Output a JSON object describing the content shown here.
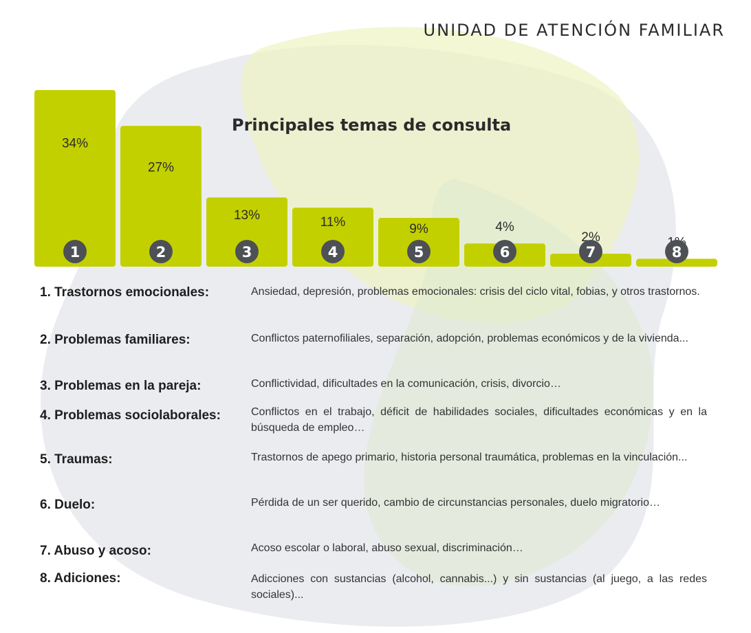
{
  "header": {
    "title": "UNIDAD DE ATENCIÓN FAMILIAR"
  },
  "colors": {
    "bar": "#c3d000",
    "badge": "#4d5055",
    "blob_gray": "#e4e6eb",
    "blob_yellow": "#eef4c2",
    "blob_green": "#dfe9cf"
  },
  "chart_data": {
    "type": "bar",
    "title": "Principales temas de consulta",
    "categories": [
      "1",
      "2",
      "3",
      "4",
      "5",
      "6",
      "7",
      "8"
    ],
    "values": [
      34,
      27,
      13,
      11,
      9,
      4,
      2,
      1
    ],
    "labels": [
      "34%",
      "27%",
      "13%",
      "11%",
      "9%",
      "4%",
      "2%",
      "1%"
    ],
    "ylim": [
      0,
      34
    ],
    "grid": false
  },
  "legend": [
    {
      "term": "1. Trastornos emocionales:",
      "desc": "Ansiedad, depresión, problemas emocionales: crisis del ciclo vital, fobias, y otros  trastornos."
    },
    {
      "term": "2. Problemas familiares:",
      "desc": "Conflictos paternofiliales, separación, adopción, problemas económicos y de la vivienda..."
    },
    {
      "term": "3. Problemas en la pareja:",
      "desc": "Conflictividad, dificultades en la comunicación, crisis, divorcio…"
    },
    {
      "term": "4. Problemas sociolaborales:",
      "desc": "Conflictos en el trabajo, déficit de habilidades sociales, dificultades económicas y en la búsqueda de empleo…"
    },
    {
      "term": "5. Traumas:",
      "desc": "Trastornos de apego primario, historia personal traumática, problemas en la vinculación..."
    },
    {
      "term": "6. Duelo:",
      "desc": "Pérdida de un ser querido, cambio de circunstancias personales, duelo migratorio…"
    },
    {
      "term": "7. Abuso y acoso:",
      "desc": "Acoso escolar o laboral, abuso sexual, discriminación…"
    },
    {
      "term": "8. Adiciones:",
      "desc": "Adicciones con sustancias (alcohol, cannabis...) y sin sustancias (al juego, a las redes sociales)..."
    }
  ]
}
